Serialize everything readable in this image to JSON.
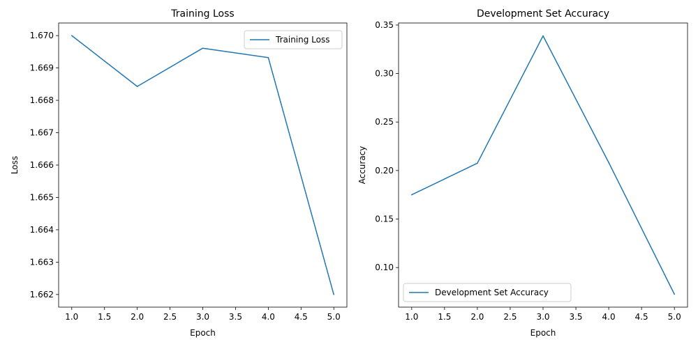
{
  "chart_data": [
    {
      "type": "line",
      "title": "Training Loss",
      "xlabel": "Epoch",
      "ylabel": "Loss",
      "x": [
        1.0,
        2.0,
        3.0,
        4.0,
        5.0
      ],
      "series": [
        {
          "name": "Training Loss",
          "values": [
            1.67,
            1.66843,
            1.66961,
            1.66932,
            1.662
          ],
          "color": "#1f77b4"
        }
      ],
      "xticks": [
        "1.0",
        "1.5",
        "2.0",
        "2.5",
        "3.0",
        "3.5",
        "4.0",
        "4.5",
        "5.0"
      ],
      "yticks": [
        "1.662",
        "1.663",
        "1.664",
        "1.665",
        "1.666",
        "1.667",
        "1.668",
        "1.669",
        "1.670"
      ],
      "xlim": [
        0.8,
        5.2
      ],
      "ylim": [
        1.66161,
        1.67039
      ],
      "grid": false,
      "legend": "upper right"
    },
    {
      "type": "line",
      "title": "Development Set Accuracy",
      "xlabel": "Epoch",
      "ylabel": "Accuracy",
      "x": [
        1.0,
        2.0,
        3.0,
        4.0,
        5.0
      ],
      "series": [
        {
          "name": "Development Set Accuracy",
          "values": [
            0.175,
            0.2076,
            0.3388,
            0.2082,
            0.0725
          ],
          "color": "#1f77b4"
        }
      ],
      "xticks": [
        "1.0",
        "1.5",
        "2.0",
        "2.5",
        "3.0",
        "3.5",
        "4.0",
        "4.5",
        "5.0"
      ],
      "yticks": [
        "0.10",
        "0.15",
        "0.20",
        "0.25",
        "0.30",
        "0.35"
      ],
      "xlim": [
        0.8,
        5.2
      ],
      "ylim": [
        0.0592,
        0.3521
      ],
      "grid": false,
      "legend": "lower left"
    }
  ]
}
